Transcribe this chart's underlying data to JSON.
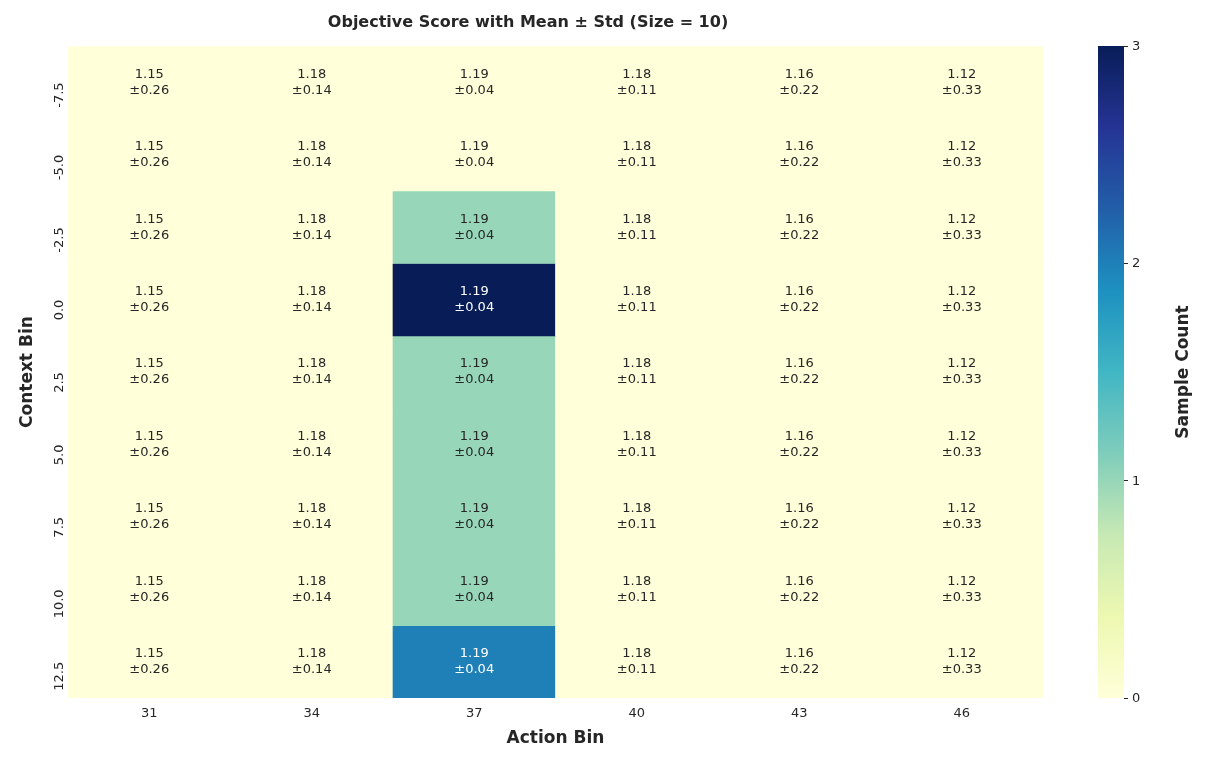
{
  "chart_data": {
    "type": "heatmap",
    "title": "Objective Score with Mean ± Std (Size = 10)",
    "xlabel": "Action Bin",
    "ylabel": "Context Bin",
    "clabel": "Sample Count",
    "categories": [
      "31",
      "34",
      "37",
      "40",
      "43",
      "46"
    ],
    "y_categories": [
      "-7.5",
      "-5.0",
      "-2.5",
      "0.0",
      "2.5",
      "5.0",
      "7.5",
      "10.0",
      "12.5"
    ],
    "cells": [
      [
        0,
        0,
        0,
        0,
        0,
        0
      ],
      [
        0,
        0,
        0,
        0,
        0,
        0
      ],
      [
        0,
        0,
        1,
        0,
        0,
        0
      ],
      [
        0,
        0,
        3,
        0,
        0,
        0
      ],
      [
        0,
        0,
        1,
        0,
        0,
        0
      ],
      [
        0,
        0,
        1,
        0,
        0,
        0
      ],
      [
        0,
        0,
        1,
        0,
        0,
        0
      ],
      [
        0,
        0,
        1,
        0,
        0,
        0
      ],
      [
        0,
        0,
        2,
        0,
        0,
        0
      ]
    ],
    "cell_labels": [
      [
        "1.15\n±0.26",
        "1.18\n±0.14",
        "1.19\n±0.04",
        "1.18\n±0.11",
        "1.16\n±0.22",
        "1.12\n±0.33"
      ],
      [
        "1.15\n±0.26",
        "1.18\n±0.14",
        "1.19\n±0.04",
        "1.18\n±0.11",
        "1.16\n±0.22",
        "1.12\n±0.33"
      ],
      [
        "1.15\n±0.26",
        "1.18\n±0.14",
        "1.19\n±0.04",
        "1.18\n±0.11",
        "1.16\n±0.22",
        "1.12\n±0.33"
      ],
      [
        "1.15\n±0.26",
        "1.18\n±0.14",
        "1.19\n±0.04",
        "1.18\n±0.11",
        "1.16\n±0.22",
        "1.12\n±0.33"
      ],
      [
        "1.15\n±0.26",
        "1.18\n±0.14",
        "1.19\n±0.04",
        "1.18\n±0.11",
        "1.16\n±0.22",
        "1.12\n±0.33"
      ],
      [
        "1.15\n±0.26",
        "1.18\n±0.14",
        "1.19\n±0.04",
        "1.18\n±0.11",
        "1.16\n±0.22",
        "1.12\n±0.33"
      ],
      [
        "1.15\n±0.26",
        "1.18\n±0.14",
        "1.19\n±0.04",
        "1.18\n±0.11",
        "1.16\n±0.22",
        "1.12\n±0.33"
      ],
      [
        "1.15\n±0.26",
        "1.18\n±0.14",
        "1.19\n±0.04",
        "1.18\n±0.11",
        "1.16\n±0.22",
        "1.12\n±0.33"
      ],
      [
        "1.15\n±0.26",
        "1.18\n±0.14",
        "1.19\n±0.04",
        "1.18\n±0.11",
        "1.16\n±0.22",
        "1.12\n±0.33"
      ]
    ],
    "clim": [
      0,
      3
    ],
    "cticks": [
      0,
      1,
      2,
      3
    ]
  }
}
